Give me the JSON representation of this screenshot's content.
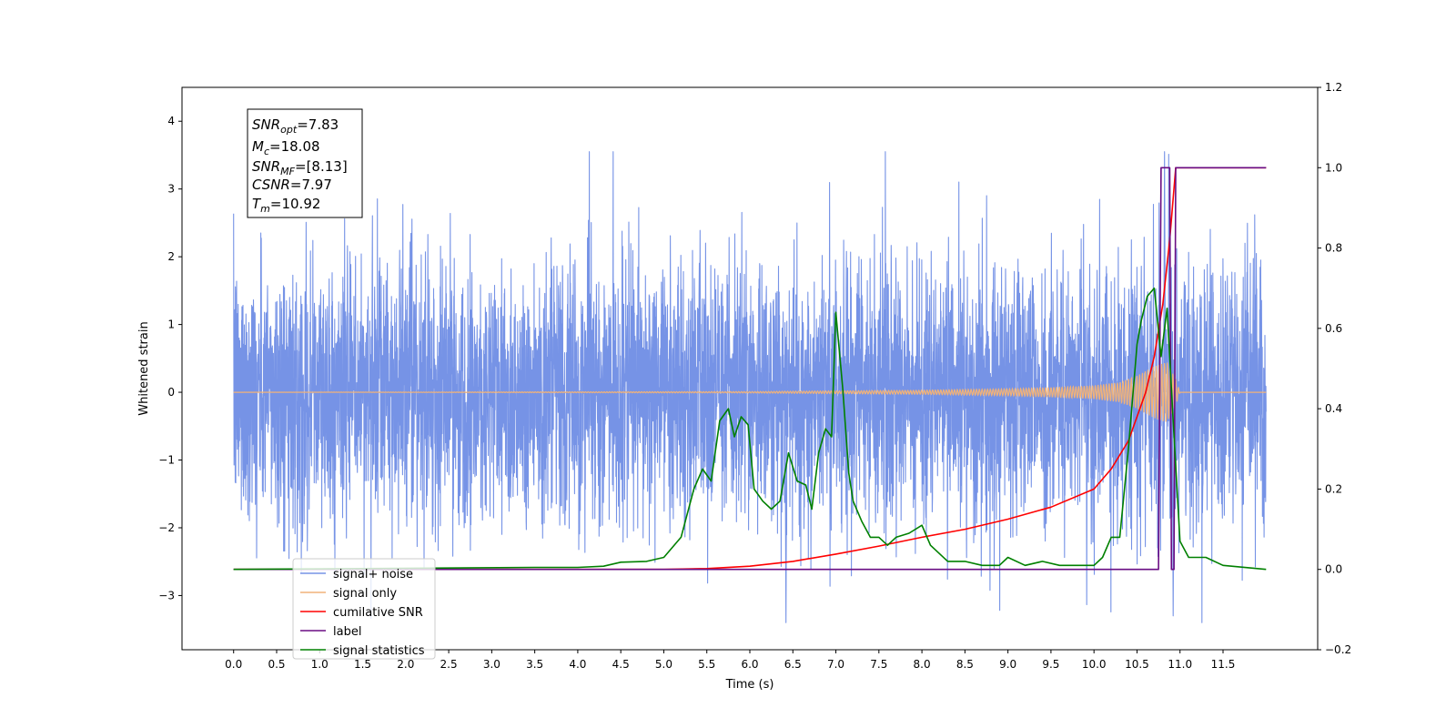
{
  "chart_data": {
    "type": "line",
    "xlabel": "Time (s)",
    "ylabel_left": "Whitened strain",
    "ylabel_right": "",
    "x_ticks": [
      "0.0",
      "0.5",
      "1.0",
      "1.5",
      "2.0",
      "2.5",
      "3.0",
      "3.5",
      "4.0",
      "4.5",
      "5.0",
      "5.5",
      "6.0",
      "6.5",
      "7.0",
      "7.5",
      "8.0",
      "8.5",
      "9.0",
      "9.5",
      "10.0",
      "10.5",
      "11.0",
      "11.5"
    ],
    "y_left_ticks": [
      "4",
      "3",
      "2",
      "1",
      "0",
      "−1",
      "−2",
      "−3"
    ],
    "y_right_ticks": [
      "1.2",
      "1.0",
      "0.8",
      "0.6",
      "0.4",
      "0.2",
      "0.0",
      "−0.2"
    ],
    "xlim": [
      -0.6,
      12.6
    ],
    "ylim_left": [
      -3.8,
      4.5
    ],
    "ylim_right": [
      -0.2,
      1.2
    ],
    "grid": false,
    "legend_location": "lower-left",
    "annotation": {
      "snr_opt": {
        "symbol": "SNR",
        "subscript": "opt",
        "value": "=7.83"
      },
      "mc": {
        "symbol": "M",
        "subscript": "c",
        "value": "=18.08"
      },
      "snr_mf": {
        "symbol": "SNR",
        "subscript": "MF",
        "value": "=[8.13]"
      },
      "csnr": {
        "symbol": "CSNR",
        "subscript": "",
        "value": "=7.97"
      },
      "tm": {
        "symbol": "T",
        "subscript": "m",
        "value": "=10.92"
      }
    },
    "series": [
      {
        "name": "signal+ noise",
        "axis": "left",
        "color": "#7693e6",
        "x_range": [
          0.0,
          12.0
        ],
        "typical_band": [
          -1.5,
          1.5
        ],
        "max": 3.55,
        "min": -3.4,
        "note_peaks": [
          {
            "x": 10.82,
            "y": 3.55
          },
          {
            "x": 6.42,
            "y": -3.4
          },
          {
            "x": 10.92,
            "y": -3.3
          }
        ]
      },
      {
        "name": "signal only",
        "axis": "left",
        "color": "#f0b27a",
        "x": [
          0.0,
          6.0,
          7.0,
          8.0,
          9.0,
          9.5,
          10.0,
          10.3,
          10.5,
          10.7,
          10.85,
          10.95,
          11.0,
          12.0
        ],
        "amplitude": [
          0.0,
          0.01,
          0.02,
          0.03,
          0.05,
          0.07,
          0.1,
          0.15,
          0.25,
          0.38,
          0.45,
          0.2,
          0.0,
          0.0
        ]
      },
      {
        "name": "cumilative SNR",
        "axis": "right",
        "color": "#ff0000",
        "x": [
          0.0,
          5.0,
          5.5,
          6.0,
          6.5,
          7.0,
          7.5,
          8.0,
          8.5,
          9.0,
          9.5,
          10.0,
          10.2,
          10.4,
          10.6,
          10.7,
          10.8,
          10.88,
          10.95,
          11.0,
          12.0
        ],
        "y": [
          0.0,
          0.0,
          0.002,
          0.008,
          0.02,
          0.038,
          0.058,
          0.08,
          0.1,
          0.125,
          0.155,
          0.2,
          0.25,
          0.32,
          0.44,
          0.53,
          0.66,
          0.82,
          1.0,
          1.0,
          1.0
        ]
      },
      {
        "name": "label",
        "axis": "right",
        "color": "#6a0d83",
        "x": [
          0.0,
          10.75,
          10.78,
          10.88,
          10.9,
          10.93,
          10.95,
          12.0
        ],
        "y": [
          0.0,
          0.0,
          1.0,
          1.0,
          0.0,
          0.0,
          1.0,
          1.0
        ]
      },
      {
        "name": "signal statistics",
        "axis": "right",
        "color": "#008000",
        "x": [
          0.0,
          3.5,
          4.0,
          4.3,
          4.5,
          4.8,
          5.0,
          5.2,
          5.35,
          5.45,
          5.55,
          5.65,
          5.75,
          5.82,
          5.9,
          5.98,
          6.05,
          6.15,
          6.25,
          6.35,
          6.45,
          6.55,
          6.65,
          6.72,
          6.8,
          6.88,
          6.95,
          7.0,
          7.08,
          7.15,
          7.2,
          7.3,
          7.4,
          7.5,
          7.6,
          7.7,
          7.85,
          8.0,
          8.1,
          8.3,
          8.5,
          8.7,
          8.9,
          9.0,
          9.2,
          9.4,
          9.6,
          9.8,
          10.0,
          10.1,
          10.2,
          10.3,
          10.4,
          10.5,
          10.55,
          10.62,
          10.7,
          10.78,
          10.85,
          10.92,
          11.0,
          11.1,
          11.3,
          11.5,
          12.0
        ],
        "y": [
          0.0,
          0.005,
          0.005,
          0.008,
          0.018,
          0.02,
          0.03,
          0.08,
          0.2,
          0.25,
          0.22,
          0.37,
          0.4,
          0.33,
          0.38,
          0.36,
          0.2,
          0.17,
          0.15,
          0.17,
          0.29,
          0.22,
          0.21,
          0.15,
          0.29,
          0.35,
          0.33,
          0.64,
          0.45,
          0.24,
          0.17,
          0.12,
          0.08,
          0.08,
          0.06,
          0.08,
          0.09,
          0.11,
          0.06,
          0.02,
          0.02,
          0.01,
          0.01,
          0.03,
          0.01,
          0.02,
          0.01,
          0.01,
          0.01,
          0.03,
          0.08,
          0.08,
          0.3,
          0.56,
          0.62,
          0.68,
          0.7,
          0.53,
          0.65,
          0.37,
          0.07,
          0.03,
          0.03,
          0.01,
          0.0
        ]
      }
    ]
  }
}
